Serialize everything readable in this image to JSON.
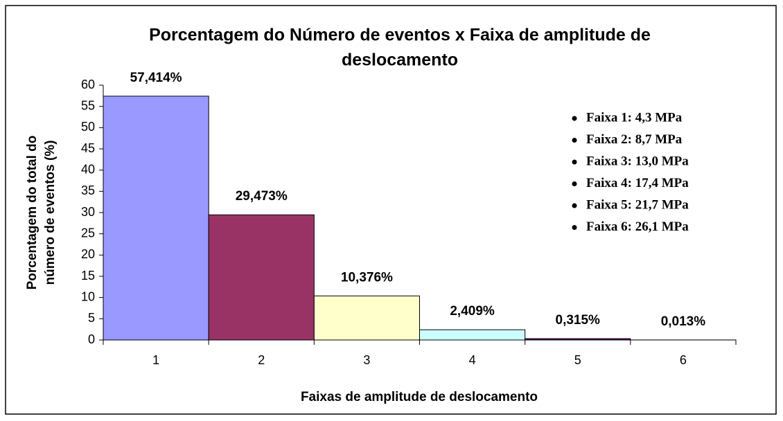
{
  "chart_data": {
    "type": "bar",
    "title": [
      "Porcentagem do Número de eventos x Faixa de amplitude de",
      "deslocamento"
    ],
    "x_label": "Faixas de amplitude de deslocamento",
    "y_label": [
      "Porcentagem do total do",
      "número de eventos (%)"
    ],
    "categories": [
      "1",
      "2",
      "3",
      "4",
      "5",
      "6"
    ],
    "values": [
      57.414,
      29.473,
      10.376,
      2.409,
      0.315,
      0.013
    ],
    "value_labels": [
      "57,414%",
      "29,473%",
      "10,376%",
      "2,409%",
      "0,315%",
      "0,013%"
    ],
    "colors": [
      "#9999ff",
      "#993366",
      "#ffffcc",
      "#ccffff",
      "#660066",
      "#ff8080"
    ],
    "ylim": [
      0,
      60
    ],
    "yticks": [
      0,
      5,
      10,
      15,
      20,
      25,
      30,
      35,
      40,
      45,
      50,
      55,
      60
    ],
    "annotations": [
      "Faixa 1: 4,3 MPa",
      "Faixa 2: 8,7 MPa",
      "Faixa 3: 13,0 MPa",
      "Faixa 4: 17,4 MPa",
      "Faixa 5: 21,7 MPa",
      "Faixa 6: 26,1 MPa"
    ]
  }
}
